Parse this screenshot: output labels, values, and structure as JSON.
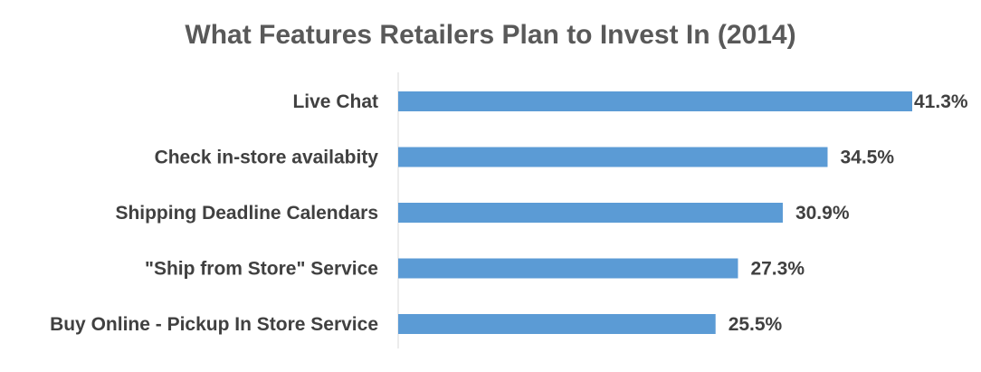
{
  "chart_data": {
    "type": "bar",
    "orientation": "horizontal",
    "title": "What Features Retailers Plan to Invest In (2014)",
    "categories": [
      "Live Chat",
      "Check in-store availabity",
      "Shipping Deadline Calendars",
      "\"Ship from Store\" Service",
      "Buy Online - Pickup In Store Service"
    ],
    "values": [
      41.3,
      34.5,
      30.9,
      27.3,
      25.5
    ],
    "value_labels": [
      "41.3%",
      "34.5%",
      "30.9%",
      "27.3%",
      "25.5%"
    ],
    "xlim": [
      0,
      41.3
    ],
    "grid": false,
    "legend": "none",
    "colors": {
      "bar": "#5B9BD5",
      "title": "#595959",
      "label": "#404040",
      "axis": "#D9D9D9"
    }
  }
}
